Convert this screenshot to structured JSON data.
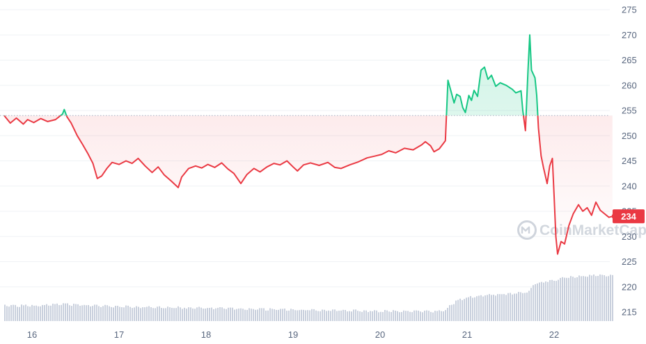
{
  "chart_data": {
    "type": "line",
    "title": "",
    "xlabel": "",
    "ylabel": "",
    "x_ticks": [
      "16",
      "17",
      "18",
      "19",
      "20",
      "21",
      "22"
    ],
    "y_ticks": [
      215,
      220,
      225,
      230,
      235,
      240,
      245,
      250,
      255,
      260,
      265,
      270,
      275
    ],
    "ylim": [
      212.5,
      276.5
    ],
    "baseline": 254,
    "current_price_label": "234",
    "watermark": "CoinMarketCap",
    "grid": true,
    "colors": {
      "up": "#16c784",
      "down": "#ea3943",
      "volume": "#c9d0dd",
      "grid": "#eff2f5",
      "baseline": "#a6b0c3"
    },
    "series": [
      {
        "values": [
          [
            15.68,
            254.0
          ],
          [
            15.75,
            252.5
          ],
          [
            15.82,
            253.5
          ],
          [
            15.9,
            252.3
          ],
          [
            15.95,
            253.2
          ],
          [
            16.02,
            252.6
          ],
          [
            16.1,
            253.4
          ],
          [
            16.18,
            252.8
          ],
          [
            16.27,
            253.2
          ],
          [
            16.35,
            254.3
          ],
          [
            16.37,
            255.2
          ],
          [
            16.4,
            253.8
          ],
          [
            16.45,
            252.5
          ],
          [
            16.52,
            250.0
          ],
          [
            16.58,
            248.3
          ],
          [
            16.64,
            246.5
          ],
          [
            16.7,
            244.5
          ],
          [
            16.75,
            241.5
          ],
          [
            16.8,
            242.0
          ],
          [
            16.86,
            243.5
          ],
          [
            16.92,
            244.7
          ],
          [
            17.0,
            244.3
          ],
          [
            17.08,
            245.0
          ],
          [
            17.15,
            244.5
          ],
          [
            17.22,
            245.5
          ],
          [
            17.3,
            244.0
          ],
          [
            17.38,
            242.7
          ],
          [
            17.45,
            243.8
          ],
          [
            17.52,
            242.2
          ],
          [
            17.6,
            241.0
          ],
          [
            17.68,
            239.7
          ],
          [
            17.72,
            241.8
          ],
          [
            17.8,
            243.5
          ],
          [
            17.88,
            244.0
          ],
          [
            17.95,
            243.6
          ],
          [
            18.02,
            244.3
          ],
          [
            18.1,
            243.7
          ],
          [
            18.18,
            244.6
          ],
          [
            18.25,
            243.4
          ],
          [
            18.32,
            242.5
          ],
          [
            18.4,
            240.5
          ],
          [
            18.47,
            242.3
          ],
          [
            18.55,
            243.5
          ],
          [
            18.62,
            242.8
          ],
          [
            18.7,
            243.8
          ],
          [
            18.78,
            244.5
          ],
          [
            18.85,
            244.2
          ],
          [
            18.93,
            245.0
          ],
          [
            19.0,
            243.8
          ],
          [
            19.05,
            243.0
          ],
          [
            19.12,
            244.2
          ],
          [
            19.2,
            244.6
          ],
          [
            19.3,
            244.1
          ],
          [
            19.4,
            244.7
          ],
          [
            19.48,
            243.7
          ],
          [
            19.55,
            243.5
          ],
          [
            19.65,
            244.2
          ],
          [
            19.75,
            244.8
          ],
          [
            19.85,
            245.6
          ],
          [
            19.95,
            246.0
          ],
          [
            20.02,
            246.3
          ],
          [
            20.1,
            247.0
          ],
          [
            20.18,
            246.6
          ],
          [
            20.28,
            247.5
          ],
          [
            20.38,
            247.2
          ],
          [
            20.48,
            248.2
          ],
          [
            20.52,
            248.8
          ],
          [
            20.58,
            248.0
          ],
          [
            20.62,
            246.8
          ],
          [
            20.68,
            247.4
          ],
          [
            20.72,
            248.3
          ],
          [
            20.75,
            249.0
          ],
          [
            20.78,
            261.0
          ],
          [
            20.82,
            258.5
          ],
          [
            20.85,
            256.5
          ],
          [
            20.88,
            258.2
          ],
          [
            20.92,
            257.8
          ],
          [
            20.95,
            255.6
          ],
          [
            20.98,
            254.6
          ],
          [
            21.02,
            258.0
          ],
          [
            21.05,
            257.0
          ],
          [
            21.08,
            259.0
          ],
          [
            21.12,
            257.8
          ],
          [
            21.16,
            263.0
          ],
          [
            21.2,
            263.6
          ],
          [
            21.24,
            261.2
          ],
          [
            21.28,
            262.0
          ],
          [
            21.33,
            259.8
          ],
          [
            21.38,
            260.5
          ],
          [
            21.45,
            260.0
          ],
          [
            21.52,
            259.2
          ],
          [
            21.56,
            258.5
          ],
          [
            21.62,
            258.9
          ],
          [
            21.64,
            255.0
          ],
          [
            21.67,
            251.0
          ],
          [
            21.7,
            263.0
          ],
          [
            21.72,
            270.0
          ],
          [
            21.74,
            263.0
          ],
          [
            21.78,
            261.5
          ],
          [
            21.8,
            258.0
          ],
          [
            21.82,
            251.5
          ],
          [
            21.85,
            246.0
          ],
          [
            21.88,
            243.5
          ],
          [
            21.92,
            240.5
          ],
          [
            21.95,
            244.0
          ],
          [
            21.98,
            245.5
          ],
          [
            22.0,
            238.0
          ],
          [
            22.02,
            230.0
          ],
          [
            22.04,
            226.5
          ],
          [
            22.08,
            229.0
          ],
          [
            22.12,
            228.5
          ],
          [
            22.17,
            232.2
          ],
          [
            22.22,
            234.5
          ],
          [
            22.28,
            236.3
          ],
          [
            22.33,
            235.0
          ],
          [
            22.38,
            235.7
          ],
          [
            22.43,
            234.2
          ],
          [
            22.48,
            236.8
          ],
          [
            22.53,
            235.2
          ],
          [
            22.58,
            234.5
          ],
          [
            22.63,
            233.8
          ],
          [
            22.67,
            234.0
          ]
        ]
      }
    ],
    "volume": [
      [
        15.68,
        216.3
      ],
      [
        16.0,
        216.2
      ],
      [
        16.3,
        216.6
      ],
      [
        16.5,
        216.4
      ],
      [
        16.8,
        216.2
      ],
      [
        17.2,
        216.0
      ],
      [
        17.6,
        215.9
      ],
      [
        18.0,
        215.8
      ],
      [
        18.4,
        215.6
      ],
      [
        18.8,
        215.5
      ],
      [
        19.2,
        215.4
      ],
      [
        19.6,
        215.3
      ],
      [
        20.0,
        215.2
      ],
      [
        20.4,
        215.1
      ],
      [
        20.75,
        215.2
      ],
      [
        20.8,
        216.4
      ],
      [
        20.9,
        217.4
      ],
      [
        21.0,
        217.9
      ],
      [
        21.2,
        218.3
      ],
      [
        21.4,
        218.6
      ],
      [
        21.6,
        218.8
      ],
      [
        21.72,
        219.2
      ],
      [
        21.75,
        220.5
      ],
      [
        21.9,
        221.2
      ],
      [
        22.0,
        221.3
      ],
      [
        22.1,
        221.9
      ],
      [
        22.3,
        222.1
      ],
      [
        22.5,
        222.3
      ],
      [
        22.67,
        222.3
      ]
    ]
  }
}
